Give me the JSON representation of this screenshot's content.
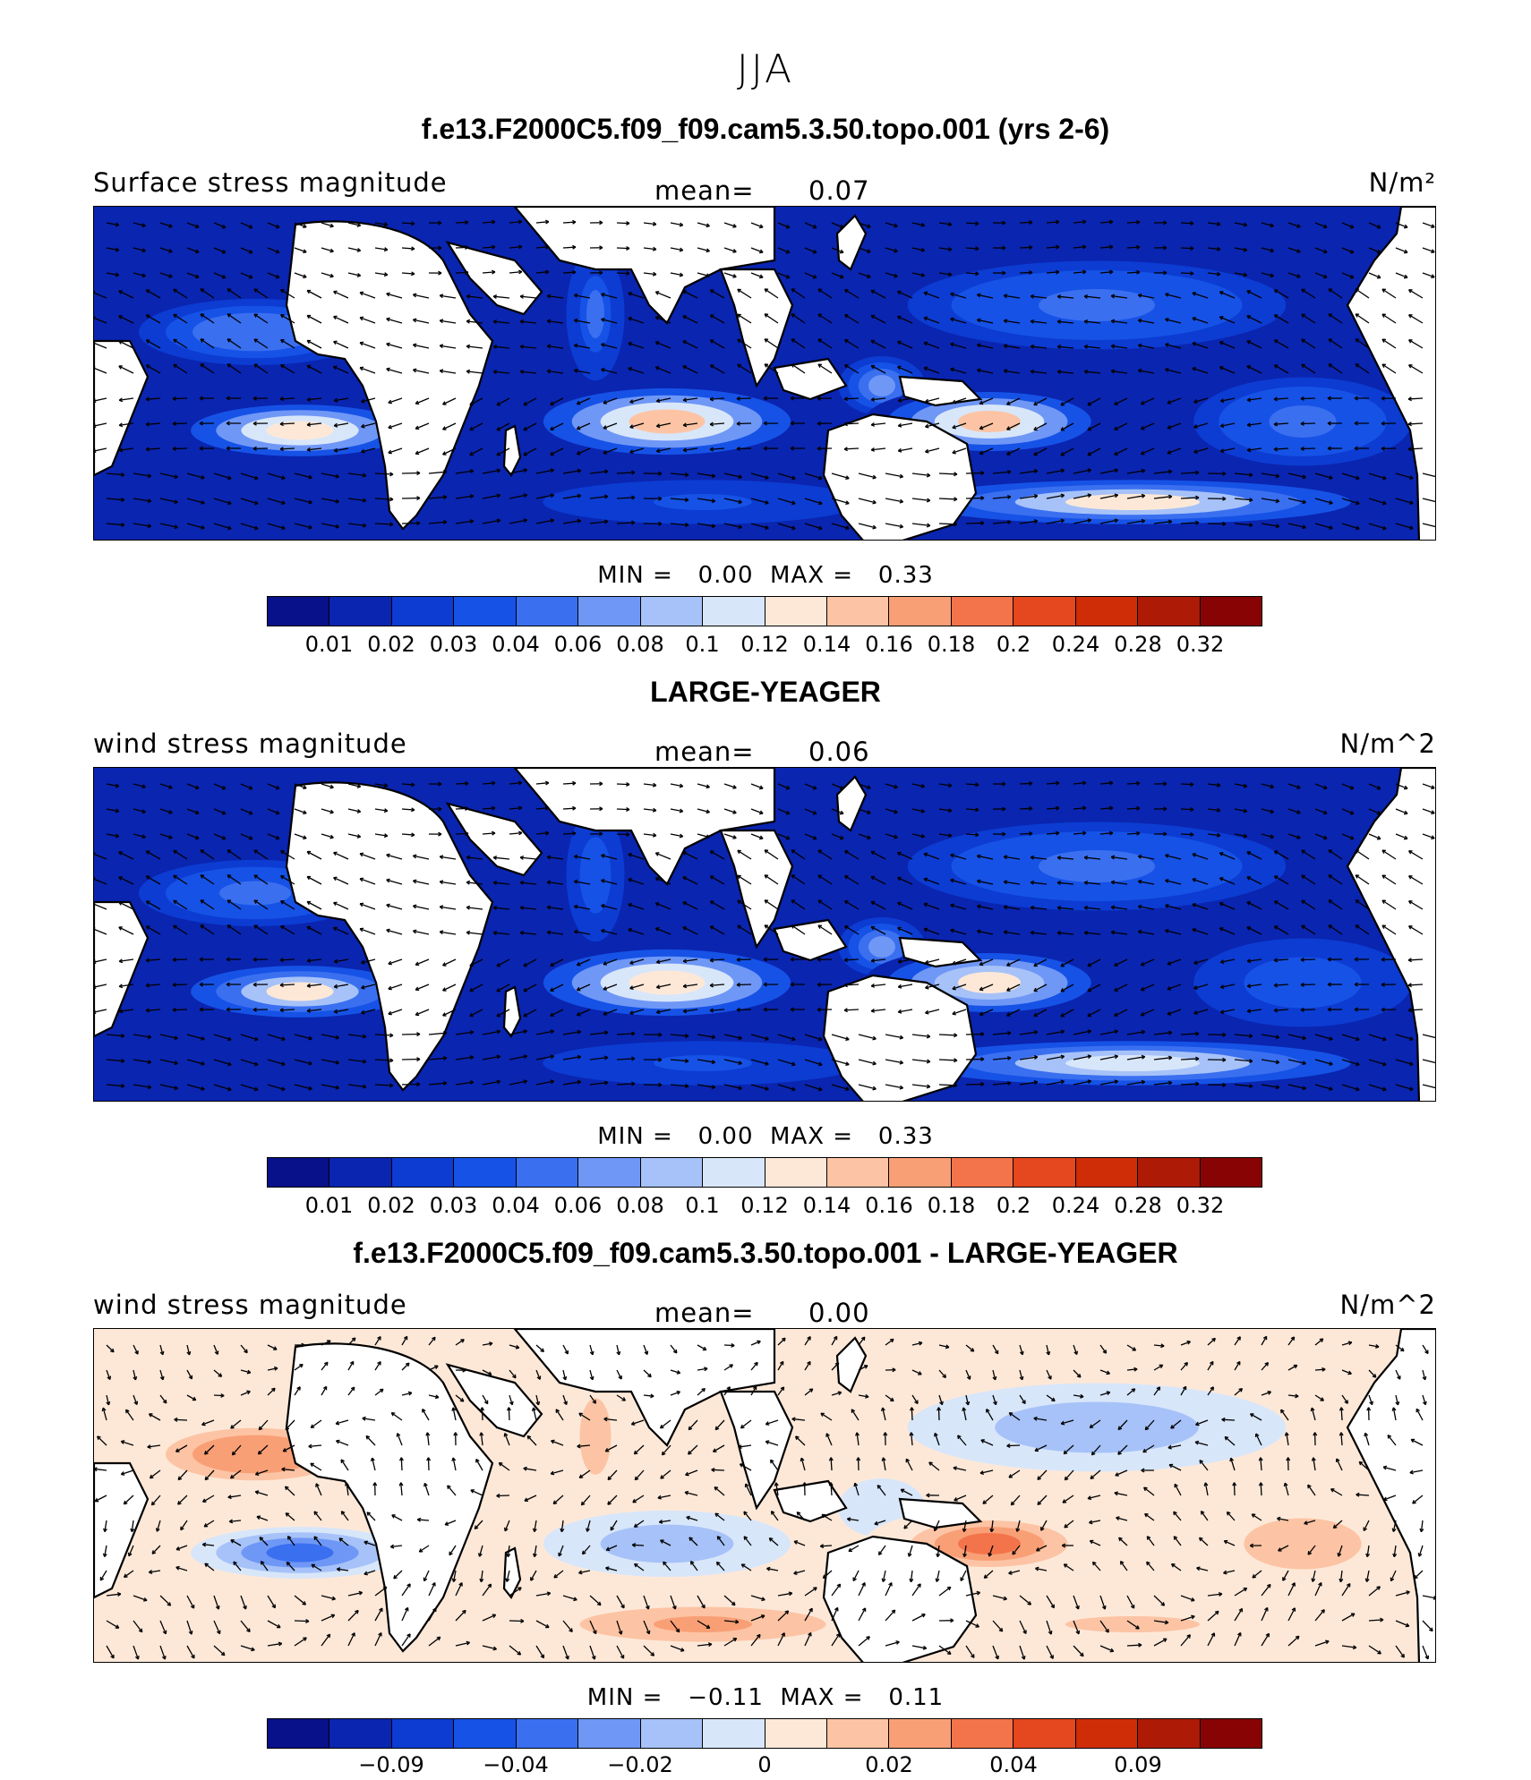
{
  "figure": {
    "season": "JJA"
  },
  "panels": [
    {
      "title": "f.e13.F2000C5.f09_f09.cam5.3.50.topo.001 (yrs 2-6)",
      "left_label": "Surface stress magnitude",
      "mean_label": "mean=",
      "mean_value": "0.07",
      "units": "N/m²",
      "min_label": "MIN =",
      "min_value": "0.00",
      "max_label": "MAX =",
      "max_value": "0.33",
      "colorbar_ticks": [
        "0.01",
        "0.02",
        "0.03",
        "0.04",
        "0.06",
        "0.08",
        "0.1",
        "0.12",
        "0.14",
        "0.16",
        "0.18",
        "0.2",
        "0.24",
        "0.28",
        "0.32"
      ]
    },
    {
      "title": "LARGE-YEAGER",
      "left_label": "wind stress magnitude",
      "mean_label": "mean=",
      "mean_value": "0.06",
      "units": "N/m^2",
      "min_label": "MIN =",
      "min_value": "0.00",
      "max_label": "MAX =",
      "max_value": "0.33",
      "colorbar_ticks": [
        "0.01",
        "0.02",
        "0.03",
        "0.04",
        "0.06",
        "0.08",
        "0.1",
        "0.12",
        "0.14",
        "0.16",
        "0.18",
        "0.2",
        "0.24",
        "0.28",
        "0.32"
      ]
    },
    {
      "title": "f.e13.F2000C5.f09_f09.cam5.3.50.topo.001 - LARGE-YEAGER",
      "left_label": "wind stress magnitude",
      "mean_label": "mean=",
      "mean_value": "0.00",
      "units": "N/m^2",
      "min_label": "MIN =",
      "min_value": "−0.11",
      "max_label": "MAX =",
      "max_value": "0.11",
      "colorbar_ticks": [
        "−0.09",
        "−0.04",
        "−0.02",
        "0",
        "0.02",
        "0.04",
        "0.09"
      ]
    }
  ],
  "colors": {
    "colorbar_16": [
      "#08108a",
      "#0a25b0",
      "#0c3cd2",
      "#1652e6",
      "#3a6ff0",
      "#6f97f6",
      "#a6c2f8",
      "#d8e6fa",
      "#fde8d8",
      "#fcc4a4",
      "#f99f76",
      "#f3744a",
      "#e5471e",
      "#cf2d08",
      "#ad1b06",
      "#880404"
    ],
    "land": "#ffffff",
    "coast": "#000000"
  },
  "chart_data": [
    {
      "type": "heatmap",
      "title": "f.e13.F2000C5.f09_f09.cam5.3.50.topo.001 (yrs 2-6)",
      "variable": "Surface stress magnitude",
      "units": "N/m²",
      "season": "JJA",
      "mean": 0.07,
      "min": 0.0,
      "max": 0.33,
      "contour_levels": [
        0.01,
        0.02,
        0.03,
        0.04,
        0.06,
        0.08,
        0.1,
        0.12,
        0.14,
        0.16,
        0.18,
        0.2,
        0.24,
        0.28,
        0.32
      ],
      "overlay": "wind stress vectors",
      "fill_intensity": [
        0.3,
        0.55,
        0.25,
        0.62,
        0.2,
        0.35,
        0.58,
        0.28,
        0.5,
        0.26
      ]
    },
    {
      "type": "heatmap",
      "title": "LARGE-YEAGER",
      "variable": "wind stress magnitude",
      "units": "N/m^2",
      "season": "JJA",
      "mean": 0.06,
      "min": 0.0,
      "max": 0.33,
      "contour_levels": [
        0.01,
        0.02,
        0.03,
        0.04,
        0.06,
        0.08,
        0.1,
        0.12,
        0.14,
        0.16,
        0.18,
        0.2,
        0.24,
        0.28,
        0.32
      ],
      "overlay": "wind stress vectors",
      "fill_intensity": [
        0.28,
        0.5,
        0.24,
        0.56,
        0.2,
        0.32,
        0.52,
        0.26,
        0.46,
        0.24
      ]
    },
    {
      "type": "heatmap",
      "title": "f.e13.F2000C5.f09_f09.cam5.3.50.topo.001 - LARGE-YEAGER",
      "variable": "wind stress magnitude",
      "units": "N/m^2",
      "season": "JJA",
      "mean": 0.0,
      "min": -0.11,
      "max": 0.11,
      "contour_levels": [
        -0.09,
        -0.04,
        -0.02,
        0,
        0.02,
        0.04,
        0.09
      ],
      "overlay": "wind stress difference vectors",
      "fill_intensity": [
        0.68,
        0.3,
        0.62,
        0.4,
        0.66,
        0.48,
        0.7,
        0.4,
        0.58,
        0.62
      ]
    }
  ]
}
